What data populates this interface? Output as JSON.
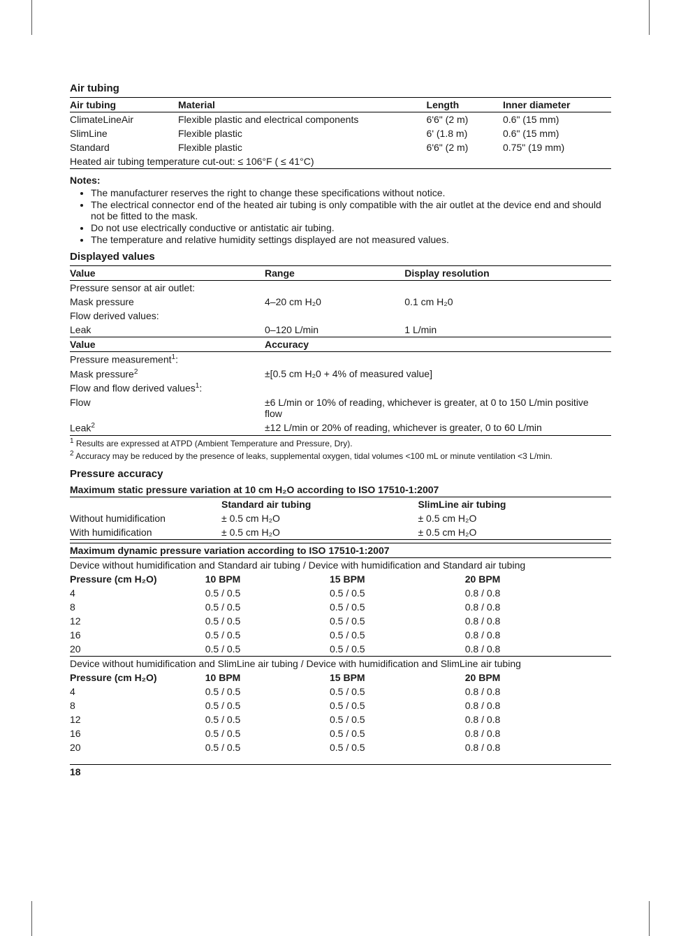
{
  "airTubing": {
    "heading": "Air tubing",
    "headers": [
      "Air tubing",
      "Material",
      "Length",
      "Inner diameter"
    ],
    "rows": [
      [
        "ClimateLineAir",
        "Flexible plastic and electrical components",
        "6'6\" (2 m)",
        "0.6\" (15 mm)"
      ],
      [
        "SlimLine",
        "Flexible plastic",
        "6' (1.8 m)",
        "0.6\" (15 mm)"
      ],
      [
        "Standard",
        "Flexible plastic",
        "6'6\" (2 m)",
        "0.75\" (19 mm)"
      ]
    ],
    "cutout": "Heated air tubing temperature cut-out: ≤ 106°F ( ≤ 41°C)"
  },
  "notes": {
    "title": "Notes:",
    "items": [
      "The manufacturer reserves the right to change these specifications without notice.",
      "The electrical connector end of the heated air tubing is only compatible with the air outlet at the device end and should not be fitted to the mask.",
      "Do not use electrically conductive or antistatic air tubing.",
      "The temperature and relative humidity settings displayed are not measured values."
    ]
  },
  "displayed": {
    "heading": "Displayed values",
    "headers1": [
      "Value",
      "Range",
      "Display resolution"
    ],
    "block1": [
      [
        "Pressure sensor at air outlet:",
        "",
        ""
      ],
      [
        "Mask pressure",
        "4–20 cm H₂0",
        "0.1 cm H₂0"
      ],
      [
        "Flow derived values:",
        "",
        ""
      ],
      [
        "Leak",
        "0–120 L/min",
        "1 L/min"
      ]
    ],
    "headers2": [
      "Value",
      "Accuracy"
    ],
    "block2": [
      {
        "label": "Pressure measurement",
        "sup": "1",
        "suffix": ":",
        "val": ""
      },
      {
        "label": "Mask pressure",
        "sup": "2",
        "suffix": "",
        "val": "±[0.5 cm H₂0 + 4% of measured value]"
      },
      {
        "label": "Flow and flow derived values",
        "sup": "1",
        "suffix": ":",
        "val": ""
      },
      {
        "label": "Flow",
        "sup": "",
        "suffix": "",
        "val": "±6 L/min or 10% of reading, whichever is greater, at 0 to 150 L/min positive flow"
      },
      {
        "label": "Leak",
        "sup": "2",
        "suffix": "",
        "val": "±12 L/min or 20% of reading, whichever is greater, 0 to 60 L/min"
      }
    ],
    "footnote1_sup": "1",
    "footnote1": " Results are expressed at ATPD (Ambient Temperature and Pressure, Dry).",
    "footnote2_sup": "2",
    "footnote2": " Accuracy may be reduced by the presence of leaks, supplemental oxygen, tidal volumes <100 mL or minute ventilation <3 L/min."
  },
  "pressure": {
    "heading": "Pressure accuracy",
    "staticTitle": "Maximum static pressure variation at 10 cm H₂O according to ISO 17510-1:2007",
    "staticHeaders": [
      "",
      "Standard air tubing",
      "SlimLine air tubing"
    ],
    "staticRows": [
      [
        "Without humidification",
        "± 0.5 cm H₂O",
        "± 0.5 cm H₂O"
      ],
      [
        "With humidification",
        "± 0.5 cm H₂O",
        "± 0.5 cm H₂O"
      ]
    ],
    "dynamicTitle": "Maximum dynamic pressure variation according to ISO 17510-1:2007",
    "dynBlocks": [
      {
        "intro": "Device without humidification and Standard air tubing / Device with humidification and Standard air tubing",
        "headers": [
          "Pressure (cm H₂O)",
          "10 BPM",
          "15 BPM",
          "20 BPM"
        ],
        "rows": [
          [
            "4",
            "0.5 / 0.5",
            "0.5 / 0.5",
            "0.8 / 0.8"
          ],
          [
            "8",
            "0.5 / 0.5",
            "0.5 / 0.5",
            "0.8 / 0.8"
          ],
          [
            "12",
            "0.5 / 0.5",
            "0.5 / 0.5",
            "0.8 / 0.8"
          ],
          [
            "16",
            "0.5 / 0.5",
            "0.5 / 0.5",
            "0.8 / 0.8"
          ],
          [
            "20",
            "0.5 / 0.5",
            "0.5 / 0.5",
            "0.8 / 0.8"
          ]
        ]
      },
      {
        "intro": "Device without humidification and SlimLine air tubing / Device with humidification and SlimLine air tubing",
        "headers": [
          "Pressure (cm H₂O)",
          "10 BPM",
          "15 BPM",
          "20 BPM"
        ],
        "rows": [
          [
            "4",
            "0.5 / 0.5",
            "0.5 / 0.5",
            "0.8 / 0.8"
          ],
          [
            "8",
            "0.5 / 0.5",
            "0.5 / 0.5",
            "0.8 / 0.8"
          ],
          [
            "12",
            "0.5 / 0.5",
            "0.5 / 0.5",
            "0.8 / 0.8"
          ],
          [
            "16",
            "0.5 / 0.5",
            "0.5 / 0.5",
            "0.8 / 0.8"
          ],
          [
            "20",
            "0.5 / 0.5",
            "0.5 / 0.5",
            "0.8 / 0.8"
          ]
        ]
      }
    ]
  },
  "pageNumber": "18"
}
